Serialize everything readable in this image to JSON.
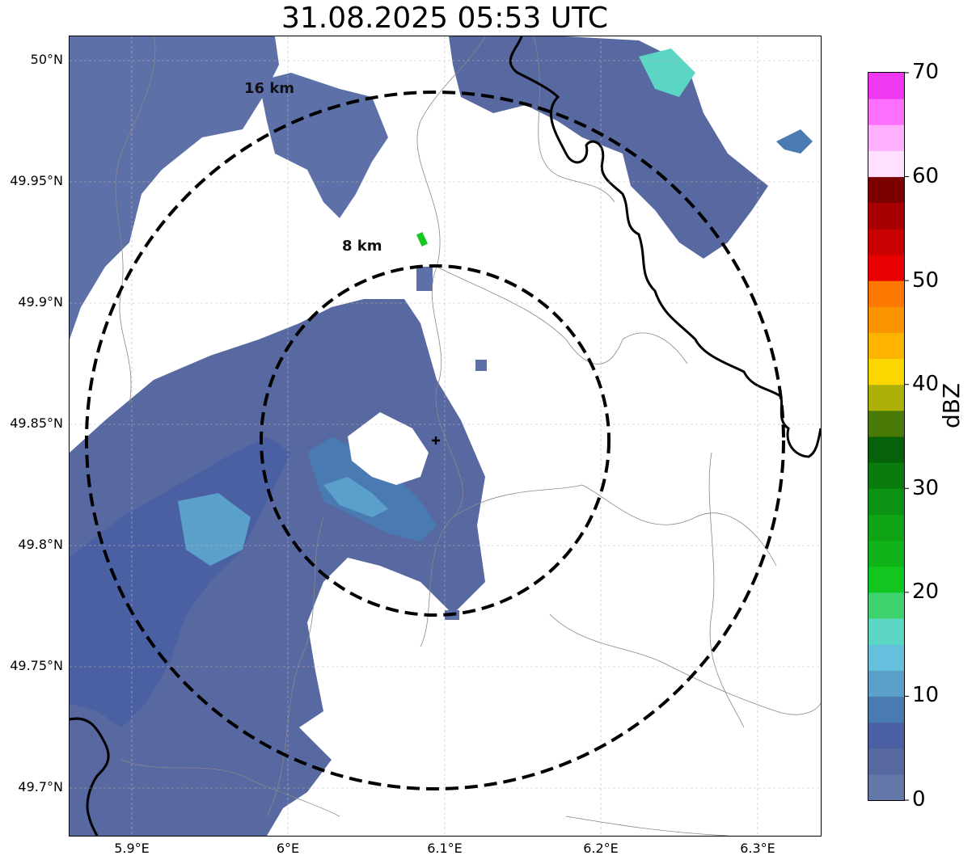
{
  "title": "31.08.2025 05:53 UTC",
  "axes": {
    "lat_labels": [
      "50°N",
      "49.95°N",
      "49.9°N",
      "49.85°N",
      "49.8°N",
      "49.75°N",
      "49.7°N"
    ],
    "lon_labels": [
      "5.9°E",
      "6°E",
      "6.1°E",
      "6.2°E",
      "6.3°E"
    ]
  },
  "rings": [
    {
      "label": "8 km",
      "radius_km": 8
    },
    {
      "label": "16 km",
      "radius_km": 16
    }
  ],
  "radar_site": {
    "lat": 49.843,
    "lon": 6.096
  },
  "colorbar": {
    "unit": "dBZ",
    "min": 0,
    "max": 70,
    "tick_labels": [
      "70",
      "60",
      "50",
      "40",
      "30",
      "20",
      "10",
      "0"
    ],
    "colors": [
      "#6378a8",
      "#5868a0",
      "#4a60a2",
      "#4a7ab2",
      "#5aa0ca",
      "#64c0dc",
      "#5cd6c4",
      "#3ed26e",
      "#12c820",
      "#10b418",
      "#0ea414",
      "#0c9212",
      "#0a7c0e",
      "#06620a",
      "#4a7a06",
      "#acb008",
      "#fcd600",
      "#fcb400",
      "#fc9400",
      "#fc7800",
      "#e80000",
      "#c80000",
      "#a80000",
      "#7c0000",
      "#ffe0ff",
      "#ffb0ff",
      "#ff70ff",
      "#f038f0"
    ]
  },
  "colors": {
    "echo_dark": "#4a60a2",
    "echo_mid": "#6378a8",
    "echo_light": "#5aa0ca",
    "echo_cyan": "#64c0dc",
    "border_line": "#000000",
    "river_line": "#888888"
  }
}
